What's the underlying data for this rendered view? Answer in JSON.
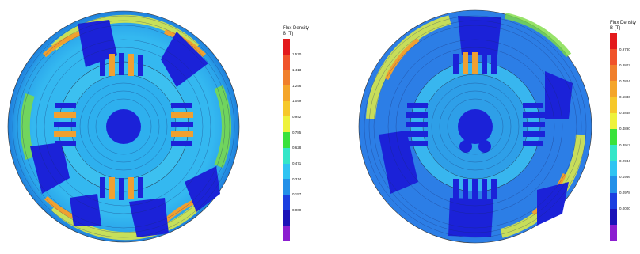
{
  "left_panel": {
    "legend": {
      "title": "Flux Density",
      "unit": "B (T)",
      "ticks": [
        "1.570",
        "1.413",
        "1.256",
        "1.099",
        "0.942",
        "0.785",
        "0.628",
        "0.471",
        "0.314",
        "0.157",
        "0.000"
      ]
    }
  },
  "right_panel": {
    "legend": {
      "title": "Flux Density",
      "unit": "B (T)",
      "ticks": [
        "0.9780",
        "0.8802",
        "0.7824",
        "0.6846",
        "0.5868",
        "0.4890",
        "0.3912",
        "0.2934",
        "0.1956",
        "0.0978",
        "0.0000"
      ]
    }
  },
  "colorbar_colors": [
    "#e31a1c",
    "#f0532a",
    "#f07f2c",
    "#f4a52a",
    "#f6c82b",
    "#eef23c",
    "#39e23b",
    "#34e6c8",
    "#2fc4f2",
    "#2390e8",
    "#1b3fe0",
    "#1b12b8",
    "#8b1ed0"
  ]
}
